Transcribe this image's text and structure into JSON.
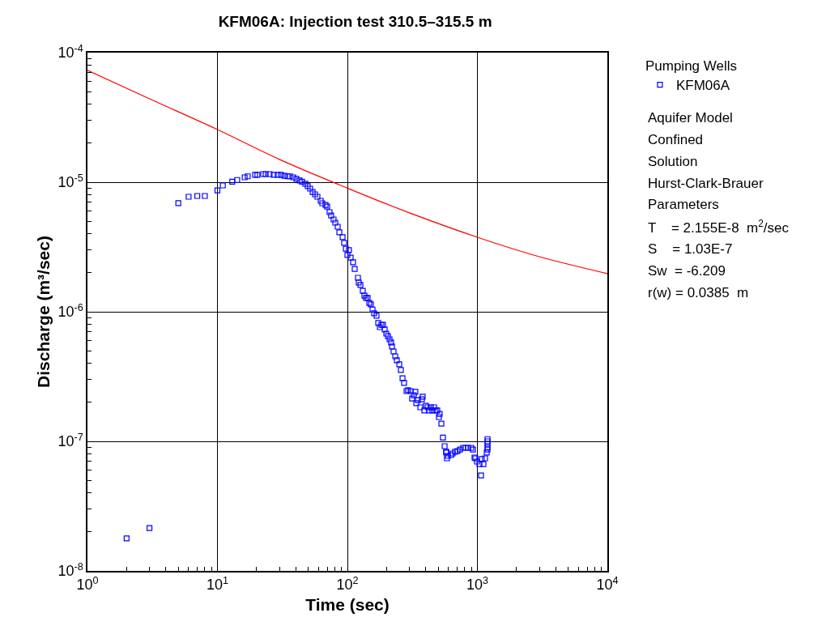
{
  "chart_data": {
    "type": "scatter",
    "title": "KFM06A: Injection test 310.5–315.5 m",
    "xlabel": "Time (sec)",
    "ylabel": "Discharge (m³/sec)",
    "legend_title": "Pumping Wells",
    "legend": "right",
    "log": "xy",
    "grid": true,
    "xlim": [
      1,
      10000
    ],
    "ylim": [
      1e-08,
      0.0001
    ],
    "xticks": [
      {
        "value": 1,
        "label": "10$^{0}$"
      },
      {
        "value": 10,
        "label": "10$^{1}$"
      },
      {
        "value": 100,
        "label": "10$^{2}$"
      },
      {
        "value": 1000,
        "label": "10$^{3}$"
      },
      {
        "value": 10000,
        "label": "10$^{4}$"
      }
    ],
    "yticks": [
      {
        "value": 1e-08,
        "label": "10$^{-8}$"
      },
      {
        "value": 1e-07,
        "label": "10$^{-7}$"
      },
      {
        "value": 1e-06,
        "label": "10$^{-6}$"
      },
      {
        "value": 1e-05,
        "label": "10$^{-5}$"
      },
      {
        "value": 0.0001,
        "label": "10$^{-4}$"
      }
    ],
    "annotations": [
      "Aquifer Model",
      "Confined",
      "Solution",
      "Hurst-Clark-Brauer",
      "Parameters",
      "T    = 2.155E-8  m$^{2}$/sec",
      "S    = 1.03E-7",
      "Sw  = -6.209",
      "r(w) = 0.0385  m"
    ],
    "series": [
      {
        "name": "KFM06A",
        "color": "#0000ff",
        "marker": "square",
        "x": [
          2,
          3,
          5,
          6,
          7,
          8,
          10,
          11,
          13,
          14.2,
          16.2,
          17.1,
          19.5,
          20.3,
          22.5,
          23.5,
          25.2,
          27.1,
          29.1,
          30.8,
          32.7,
          34.6,
          36.1,
          38.3,
          40.5,
          42.9,
          44.8,
          47.4,
          49.5,
          51.7,
          54,
          56.4,
          58.8,
          62.3,
          64.1,
          67.9,
          69.8,
          72.9,
          75,
          78.3,
          80.7,
          84.2,
          86.7,
          91.8,
          94.4,
          97.2,
          100,
          102.8,
          105.9,
          110.6,
          113.8,
          120.5,
          122.2,
          125.9,
          131.3,
          135.2,
          139,
          143.2,
          147.3,
          151.6,
          156.1,
          160.6,
          167.5,
          172.6,
          177.6,
          182.7,
          187.9,
          193.6,
          199.2,
          205,
          211,
          216.8,
          220.3,
          226.5,
          233.3,
          239.9,
          250.6,
          257.8,
          265.5,
          272.9,
          285.1,
          293.1,
          306.2,
          314.8,
          324.3,
          333.4,
          338.8,
          348.5,
          363.9,
          374.3,
          379.6,
          390.8,
          402,
          413.9,
          425.6,
          438.5,
          450.8,
          464.5,
          477.5,
          491.6,
          505.8,
          512.9,
          528.4,
          543.3,
          559.8,
          575.4,
          576,
          583.6,
          592.6,
          628,
          645.7,
          674.5,
          703,
          734.5,
          778,
          812.8,
          847,
          897,
          924,
          951,
          965,
          993,
          1037,
          1067,
          1082,
          1114,
          1146,
          1180,
          1197,
          1197,
          1197,
          1197,
          1197
        ],
        "values": [
          1.78e-08,
          2.14e-08,
          6.9e-06,
          7.72e-06,
          7.83e-06,
          7.83e-06,
          8.65e-06,
          9.44e-06,
          1.01e-05,
          1.04e-05,
          1.09e-05,
          1.11e-05,
          1.14e-05,
          1.14e-05,
          1.155e-05,
          1.155e-05,
          1.155e-05,
          1.14e-05,
          1.14e-05,
          1.14e-05,
          1.12e-05,
          1.11e-05,
          1.11e-05,
          1.09e-05,
          1.06e-05,
          1.03e-05,
          1.01e-05,
          9.72e-06,
          9.31e-06,
          8.91e-06,
          8.41e-06,
          8.06e-06,
          7.72e-06,
          7.18e-06,
          6.88e-06,
          6.68e-06,
          6.49e-06,
          5.87e-06,
          5.54e-06,
          5.16e-06,
          4.87e-06,
          4.53e-06,
          4.1e-06,
          3.76e-06,
          3.4e-06,
          3.07e-06,
          2.74e-06,
          2.99e-06,
          2.62e-06,
          2.41e-06,
          2.14e-06,
          1.83e-06,
          1.68e-06,
          1.61e-06,
          1.45e-06,
          1.33e-06,
          1.28e-06,
          1.28e-06,
          1.17e-06,
          1.14e-06,
          1.04e-06,
          9.72e-07,
          9.31e-07,
          8.18e-07,
          7.61e-07,
          7.94e-07,
          7.94e-07,
          7.29e-07,
          6.78e-07,
          6.49e-07,
          6.13e-07,
          5.79e-07,
          5.39e-07,
          4.94e-07,
          4.53e-07,
          4.22e-07,
          3.93e-07,
          3.55e-07,
          3.07e-07,
          2.82e-07,
          2.44e-07,
          2.48e-07,
          2.44e-07,
          2.14e-07,
          2.27e-07,
          2.41e-07,
          1.97e-07,
          2.08e-07,
          1.83e-07,
          2.11e-07,
          2.21e-07,
          1.73e-07,
          1.88e-07,
          1.83e-07,
          1.73e-07,
          1.83e-07,
          1.73e-07,
          1.83e-07,
          1.73e-07,
          1.73e-07,
          1.54e-07,
          1.63e-07,
          1.37e-07,
          1.07e-07,
          9.17e-08,
          8.3e-08,
          8.18e-08,
          7.39e-08,
          7.72e-08,
          7.83e-08,
          8.06e-08,
          8.3e-08,
          8.41e-08,
          8.65e-08,
          8.91e-08,
          8.91e-08,
          8.91e-08,
          8.91e-08,
          8.65e-08,
          7.5e-08,
          7.39e-08,
          6.98e-08,
          6.68e-08,
          5.46e-08,
          7.29e-08,
          6.68e-08,
          7.39e-08,
          8.18e-08,
          1.04e-07,
          1e-07,
          9.58e-08,
          9.04e-08,
          8.65e-08
        ]
      },
      {
        "type": "line",
        "color": "#ff0000",
        "marker": "none",
        "line_style": "solid",
        "x": [
          1,
          3,
          10,
          30,
          100,
          300,
          1000,
          3000,
          10000
        ],
        "values": [
          7.3e-05,
          4.4e-05,
          2.55e-05,
          1.5e-05,
          9e-06,
          5.8e-06,
          3.76e-06,
          2.66e-06,
          1.97e-06
        ]
      }
    ]
  }
}
